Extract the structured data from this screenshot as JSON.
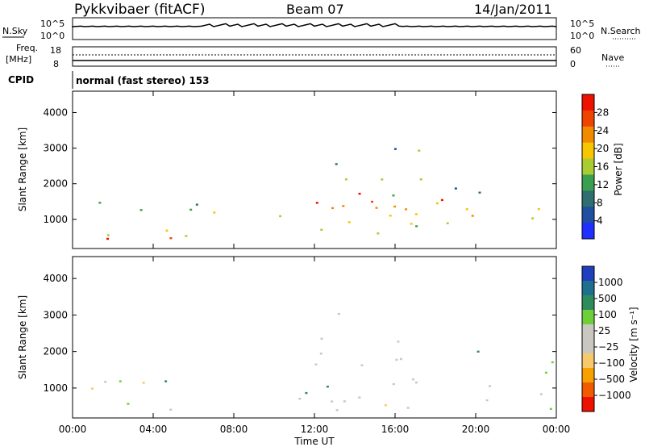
{
  "header": {
    "station": "Pykkvibaer (fitACF)",
    "beam": "Beam 07",
    "date": "14/Jan/2011"
  },
  "noise_panel": {
    "left_label": "N.Sky",
    "left_ticks": [
      "10^5",
      "10^0"
    ],
    "right_ticks": [
      "10^5",
      "10^0"
    ],
    "right_label": "N.Search"
  },
  "freq_panel": {
    "left_label_1": "Freq.",
    "left_label_2": "[MHz]",
    "left_ticks": [
      "18",
      "8"
    ],
    "right_ticks": [
      "60",
      "0"
    ],
    "right_label": "Nave"
  },
  "cpid_panel": {
    "label": "CPID",
    "text": "normal (fast stereo) 153"
  },
  "colors": {
    "power_scale": [
      "#1f2fff",
      "#1f4fa0",
      "#2f6f6f",
      "#3aa050",
      "#aacc33",
      "#f7c600",
      "#f28a00",
      "#ef4400",
      "#ee1100"
    ],
    "velocity_scale": [
      "#ee1100",
      "#f25a00",
      "#f7a000",
      "#f7c96a",
      "#c8c8c0",
      "#c8c8c0",
      "#6fcf3a",
      "#2e8b5a",
      "#1f6f8f",
      "#1f3fbf"
    ]
  },
  "chart_data": [
    {
      "type": "heatmap",
      "name": "power-panel",
      "ylabel": "Slant Range [km]",
      "xlabel": "",
      "y_ticks": [
        1000,
        2000,
        3000,
        4000
      ],
      "ylim": [
        180,
        4600
      ],
      "x_range_hours": [
        0,
        24
      ],
      "colorbar": {
        "label": "Power [dB]",
        "ticks": [
          4,
          8,
          12,
          16,
          20,
          24,
          28
        ],
        "range": [
          0,
          32
        ]
      },
      "blobs": [
        {
          "t0": 0.1,
          "t1": 7.0,
          "r0": 300,
          "r1": 1650,
          "intensity": 0.7
        },
        {
          "t0": 0.2,
          "t1": 5.5,
          "r0": 350,
          "r1": 700,
          "intensity": 0.95
        },
        {
          "t0": 10.2,
          "t1": 18.5,
          "r0": 400,
          "r1": 2900,
          "intensity": 0.85
        },
        {
          "t0": 11.5,
          "t1": 17.0,
          "r0": 700,
          "r1": 1700,
          "intensity": 1.0
        },
        {
          "t0": 18.5,
          "t1": 23.8,
          "r0": 400,
          "r1": 2000,
          "intensity": 0.6
        },
        {
          "t0": 13.0,
          "t1": 18.0,
          "r0": 2400,
          "r1": 3100,
          "intensity": 0.45
        }
      ]
    },
    {
      "type": "heatmap",
      "name": "velocity-panel",
      "ylabel": "Slant Range [km]",
      "xlabel": "Time UT",
      "y_ticks": [
        1000,
        2000,
        3000,
        4000
      ],
      "ylim": [
        180,
        4600
      ],
      "x_ticks": [
        "00:00",
        "04:00",
        "08:00",
        "12:00",
        "16:00",
        "20:00",
        "00:00"
      ],
      "x_range_hours": [
        0,
        24
      ],
      "colorbar": {
        "label": "Velocity [m s⁻¹]",
        "ticks": [
          "1000",
          "500",
          "100",
          "25",
          "−25",
          "−100",
          "−500",
          "−1000"
        ]
      },
      "blobs": [
        {
          "t0": 0.1,
          "t1": 7.0,
          "r0": 250,
          "r1": 1650,
          "mode": "mix_green_grey"
        },
        {
          "t0": 10.2,
          "t1": 18.5,
          "r0": 400,
          "r1": 3100,
          "mode": "grey"
        },
        {
          "t0": 10.5,
          "t1": 13.5,
          "r0": 500,
          "r1": 1400,
          "mode": "green"
        },
        {
          "t0": 14.0,
          "t1": 16.5,
          "r0": 400,
          "r1": 900,
          "mode": "orange"
        },
        {
          "t0": 18.5,
          "t1": 23.8,
          "r0": 400,
          "r1": 2100,
          "mode": "grey_green"
        }
      ]
    }
  ]
}
